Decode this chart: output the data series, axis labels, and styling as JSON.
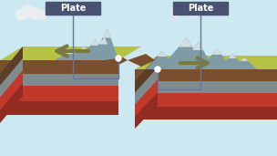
{
  "bg_color": "#d6eaf8",
  "sky_color": "#cce8f0",
  "plate_label_bg": "#4a5272",
  "plate_label_color": "#ffffff",
  "plate_label_text": "Plate",
  "grass_color": "#b5c244",
  "grass_shadow": "#9aab2a",
  "rock_dark": "#5a3e28",
  "rock_brown": "#7a4f2d",
  "rock_gray": "#808080",
  "rock_light_gray": "#9eaab0",
  "mantle_red": "#c0392b",
  "mantle_dark_red": "#922b21",
  "layer_gray": "#7f8c8d",
  "arrow_color": "#7a7a40",
  "cloud_color": "#e8eef0",
  "mountain_gray": "#7f9ba6",
  "mountain_light": "#a8bcc4",
  "mountain_snow": "#d0dde2"
}
